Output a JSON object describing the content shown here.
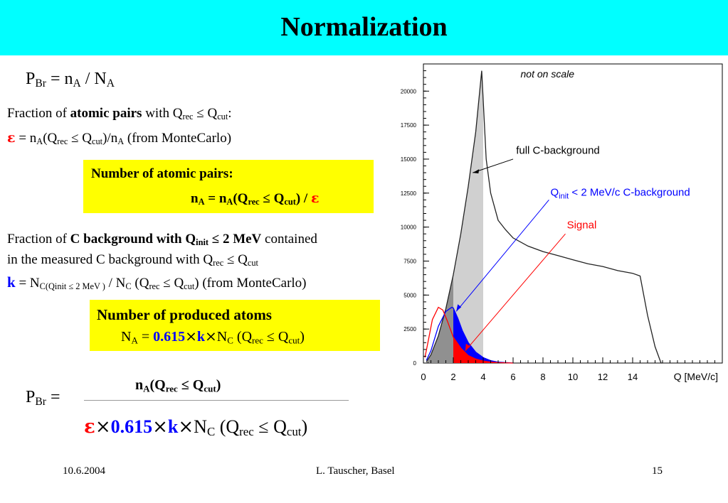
{
  "title": "Normalization",
  "formula_pbr": {
    "p": "P",
    "p_sub": "Br",
    "eq": " = n",
    "n_sub": "A",
    "sep": " / N",
    "n2_sub": "A"
  },
  "fraction_atomic": {
    "pre": "Fraction of ",
    "bold": "atomic pairs",
    "with": " with Q",
    "rec": "rec",
    "le": " ≤ Q",
    "cut": "cut",
    "colon": ":"
  },
  "epsilon_line": {
    "eps": "ε",
    "t1": " = n",
    "A1": "A",
    "t2": "(Q",
    "rec": "rec",
    "t3": " ≤ Q",
    "cut": "cut",
    "t4": ")/n",
    "A2": "A",
    "t5": " (from MonteCarlo)"
  },
  "box1": {
    "heading": "Number of atomic pairs:",
    "n": "n",
    "A1": "A",
    "eq": " = n",
    "A2": "A",
    "q": "(Q",
    "rec": "rec",
    "le": " ≤ Q",
    "cut": "cut",
    "close": ") / ",
    "eps": "ε"
  },
  "fraction_c": {
    "pre": "Fraction of ",
    "b1": "C background with Q",
    "init": "init",
    "b2": " ≤ 2 MeV",
    "post": " contained",
    "line2": "in the measured C background with Q",
    "rec": "rec",
    "le": " ≤ Q",
    "cut": "cut"
  },
  "k_line": {
    "k": "k",
    "t1": " = N",
    "sub": "C(Qinit ≤ 2 MeV )",
    "t2": " / N",
    "C": "C",
    "t3": " (Q",
    "rec": "rec",
    "t4": " ≤ Q",
    "cut": "cut",
    "t5": ") (from MonteCarlo)"
  },
  "box2": {
    "heading": "Number of produced atoms",
    "N": "N",
    "A": "A",
    "eq": " = ",
    "val": "0.615",
    "times1": "×",
    "k": "k",
    "times2": "×",
    "Nc": "N",
    "C": "C",
    "q": " (Q",
    "rec": "rec",
    "le": " ≤ Q",
    "cut": "cut",
    "close": ")"
  },
  "bottom_formula": {
    "lhs": "P",
    "lhs_sub": "Br",
    "lhs_eq": " =",
    "num": {
      "n": "n",
      "A": "A",
      "q": "(Q",
      "rec": "rec",
      "le": " ≤ Q",
      "cut": "cut",
      "close": ")"
    },
    "den": {
      "eps": "ε",
      "x1": "×",
      "val": "0.615",
      "x2": "×",
      "k": "k",
      "x3": "×",
      "N": "N",
      "C": "C",
      "q": " (Q",
      "rec": "rec",
      "le": " ≤ Q",
      "cut": "cut",
      "close": ")"
    }
  },
  "footer": {
    "date": "10.6.2004",
    "author": "L. Tauscher, Basel",
    "page": "15"
  },
  "chart_data": {
    "type": "area",
    "title": "",
    "xlabel": "Q [MeV/c]",
    "ylabel": "",
    "xlim": [
      0,
      20
    ],
    "ylim": [
      0,
      22000
    ],
    "xticks": [
      0,
      2,
      4,
      6,
      8,
      10,
      12,
      14
    ],
    "yticks": [
      0,
      2500,
      5000,
      7500,
      10000,
      12500,
      15000,
      17500,
      20000
    ],
    "annotations": [
      "not on scale",
      "full C-background",
      "Q",
      "init",
      " < 2 MeV/c C-background",
      "Signal"
    ],
    "series": [
      {
        "name": "full C-background",
        "color": "#000000",
        "x": [
          0.2,
          0.5,
          1.0,
          1.5,
          2.0,
          2.5,
          3.0,
          3.5,
          3.9,
          4.2,
          4.5,
          5.0,
          5.5,
          6.0,
          7.0,
          8.0,
          9.0,
          10.0,
          11.0,
          12.0,
          13.0,
          14.0,
          14.5,
          15.0,
          15.5,
          15.9,
          16.0
        ],
        "y": [
          100,
          600,
          2000,
          4000,
          6500,
          9500,
          13000,
          17000,
          21500,
          15000,
          12500,
          10500,
          9800,
          9200,
          8600,
          8200,
          7900,
          7600,
          7300,
          7100,
          6800,
          6600,
          6400,
          3500,
          1200,
          0,
          0
        ]
      },
      {
        "name": "Q_init < 2 MeV/c C-background",
        "color": "#0000ff",
        "x": [
          0.2,
          0.5,
          1.0,
          1.5,
          1.9,
          2.0,
          2.3,
          2.6,
          3.0,
          3.5,
          4.0,
          4.5,
          5.0,
          6.0
        ],
        "y": [
          200,
          900,
          2700,
          3800,
          4100,
          4050,
          3300,
          2400,
          1500,
          800,
          400,
          180,
          70,
          0
        ]
      },
      {
        "name": "Signal",
        "color": "#ff0000",
        "x": [
          0.1,
          0.3,
          0.6,
          1.0,
          1.3,
          1.6,
          2.0,
          2.5,
          3.0,
          3.5,
          4.0,
          4.5,
          5.0,
          6.0
        ],
        "y": [
          400,
          1500,
          3200,
          4100,
          3900,
          3100,
          1900,
          1100,
          550,
          300,
          150,
          70,
          30,
          0
        ]
      }
    ],
    "shaded": {
      "light_gray_x": [
        2,
        4
      ],
      "dark_gray_x": [
        0,
        2
      ],
      "blue_x": [
        2,
        6
      ],
      "red_x": [
        2,
        6
      ]
    },
    "colors": {
      "title_bar": "#00ffff",
      "highlight": "#ffff00",
      "blue": "#0000ff",
      "red": "#ff0000",
      "light_gray": "#d0d0d0",
      "dark_gray": "#909090"
    }
  }
}
